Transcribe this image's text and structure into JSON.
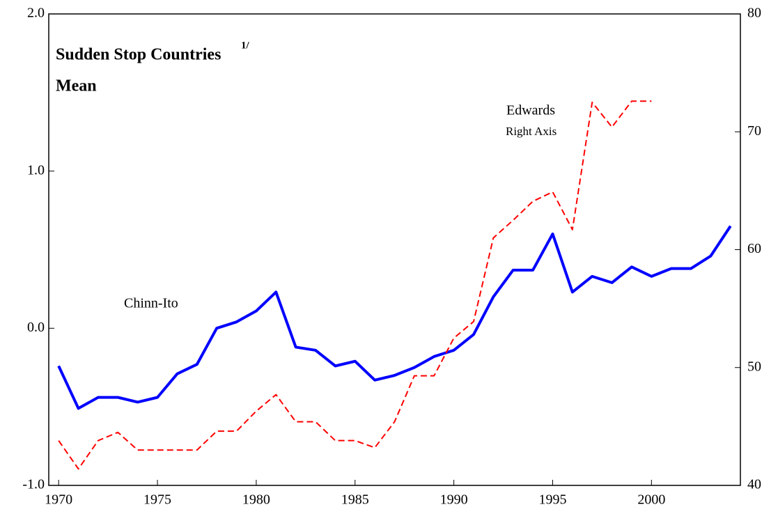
{
  "chart_data": {
    "type": "line",
    "title": "Sudden Stop Countries",
    "title_note": "1/",
    "subtitle": "Mean",
    "annotations": [
      "Chinn-Ito",
      "Edwards",
      "Right Axis"
    ],
    "x": [
      1970,
      1971,
      1972,
      1973,
      1974,
      1975,
      1976,
      1977,
      1978,
      1979,
      1980,
      1981,
      1982,
      1983,
      1984,
      1985,
      1986,
      1987,
      1988,
      1989,
      1990,
      1991,
      1992,
      1993,
      1994,
      1995,
      1996,
      1997,
      1998,
      1999,
      2000,
      2001,
      2002,
      2003,
      2004
    ],
    "xlim": [
      1969.5,
      2004.5
    ],
    "xticks": [
      1970,
      1975,
      1980,
      1985,
      1990,
      1995,
      2000
    ],
    "ylim": [
      -1,
      2
    ],
    "yticks": [
      {
        "value": -1,
        "label": "-1.0"
      },
      {
        "value": 0,
        "label": "0.0"
      },
      {
        "value": 1,
        "label": "1.0"
      },
      {
        "value": 2,
        "label": "2.0"
      }
    ],
    "y2lim": [
      40,
      80
    ],
    "y2ticks": [
      40,
      50,
      60,
      70,
      80
    ],
    "series": [
      {
        "name": "Chinn-Ito",
        "color": "#0000ff",
        "dash": false,
        "values": [
          -0.24,
          -0.51,
          -0.44,
          -0.44,
          -0.47,
          -0.44,
          -0.29,
          -0.23,
          0.0,
          0.04,
          0.11,
          0.23,
          -0.12,
          -0.14,
          -0.24,
          -0.21,
          -0.33,
          -0.3,
          -0.25,
          -0.18,
          -0.14,
          -0.04,
          0.2,
          0.37,
          0.37,
          0.6,
          0.23,
          0.33,
          0.29,
          0.39,
          0.33,
          0.38,
          0.38,
          0.46,
          0.65
        ]
      },
      {
        "name": "Edwards",
        "color": "#ff0000",
        "dash": true,
        "axis": "y2",
        "values": [
          43.8,
          41.4,
          43.8,
          44.5,
          43.0,
          43.0,
          43.0,
          43.0,
          44.6,
          44.6,
          46.3,
          47.7,
          45.4,
          45.4,
          43.8,
          43.8,
          43.2,
          45.4,
          49.3,
          49.3,
          52.5,
          53.9,
          61.0,
          62.5,
          64.1,
          64.9,
          61.7,
          72.5,
          70.4,
          72.6,
          72.6,
          null,
          null,
          null,
          null
        ]
      }
    ]
  }
}
